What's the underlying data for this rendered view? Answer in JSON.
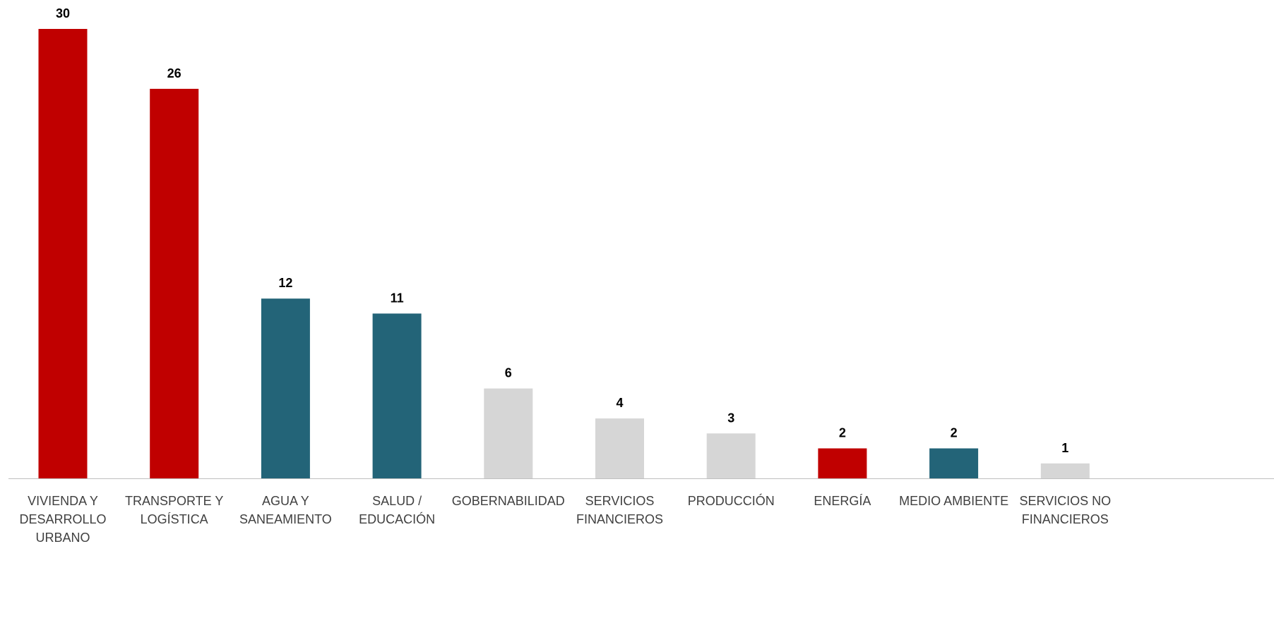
{
  "chart_data": {
    "type": "bar",
    "title": "",
    "xlabel": "",
    "ylabel": "",
    "ylim": [
      0,
      30
    ],
    "grid": false,
    "legend": "none",
    "categories": [
      [
        "VIVIENDA Y",
        "DESARROLLO",
        "URBANO"
      ],
      [
        "TRANSPORTE Y",
        "LOGÍSTICA"
      ],
      [
        "AGUA Y",
        "SANEAMIENTO"
      ],
      [
        "SALUD /",
        "EDUCACIÓN"
      ],
      [
        "GOBERNABILIDAD"
      ],
      [
        "SERVICIOS",
        "FINANCIEROS"
      ],
      [
        "PRODUCCIÓN"
      ],
      [
        "ENERGÍA"
      ],
      [
        "MEDIO AMBIENTE"
      ],
      [
        "SERVICIOS NO",
        "FINANCIEROS"
      ]
    ],
    "values": [
      30,
      26,
      12,
      11,
      6,
      4,
      3,
      2,
      2,
      1
    ],
    "value_labels": [
      "30",
      "26",
      "12",
      "11",
      "6",
      "4",
      "3",
      "2",
      "2",
      "1"
    ],
    "bar_colors": [
      "#C00000",
      "#C00000",
      "#236478",
      "#236478",
      "#D6D6D6",
      "#D6D6D6",
      "#D6D6D6",
      "#C00000",
      "#236478",
      "#D6D6D6"
    ]
  },
  "axis_color": "#BFBFBF"
}
